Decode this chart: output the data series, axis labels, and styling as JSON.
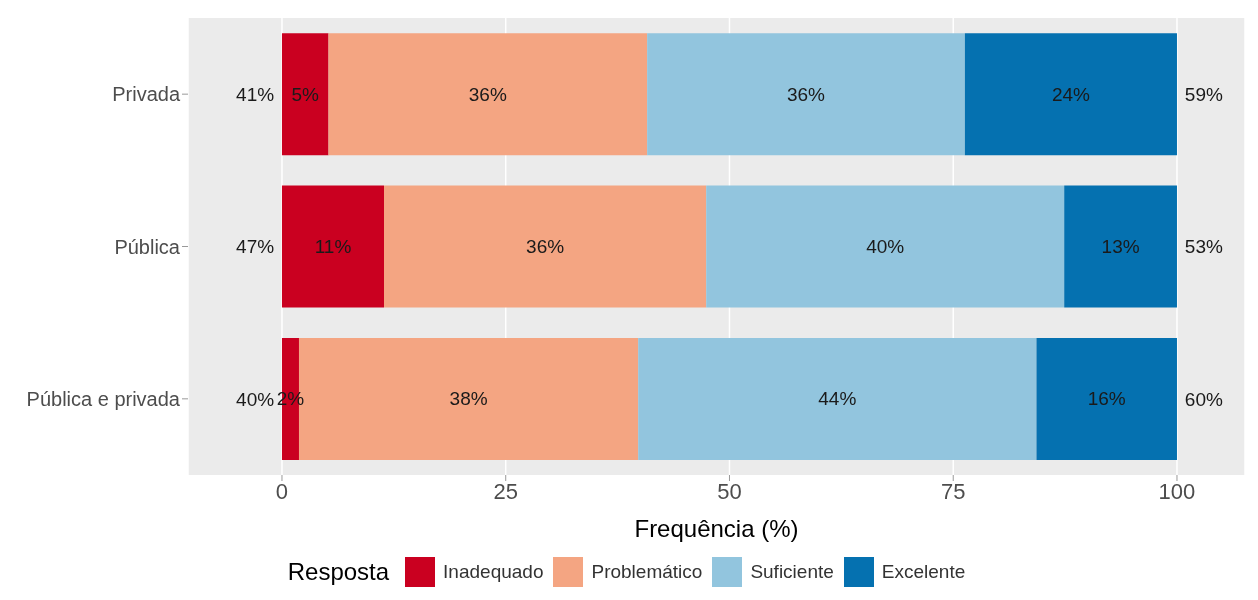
{
  "chart_data": {
    "type": "bar",
    "orientation": "horizontal",
    "stacked": true,
    "xlabel": "Frequência (%)",
    "legend_title": "Resposta",
    "legend": "bottom",
    "grid": "x",
    "categories": [
      "Privada",
      "Pública",
      "Pública e privada"
    ],
    "xlim": [
      -10.5,
      107.6
    ],
    "xticks": [
      0,
      25,
      50,
      75,
      100
    ],
    "series": [
      {
        "name": "Inadequado",
        "color": "#ca0020",
        "values": [
          5.2,
          11.4,
          1.9
        ],
        "value_labels": [
          "5%",
          "11%",
          "2%"
        ]
      },
      {
        "name": "Problemático",
        "color": "#f4a582",
        "values": [
          35.6,
          36.0,
          37.9
        ],
        "value_labels": [
          "36%",
          "36%",
          "38%"
        ]
      },
      {
        "name": "Suficiente",
        "color": "#92c5de",
        "values": [
          35.5,
          40.0,
          44.5
        ],
        "value_labels": [
          "36%",
          "40%",
          "44%"
        ]
      },
      {
        "name": "Excelente",
        "color": "#0571b0",
        "values": [
          23.7,
          12.6,
          15.7
        ],
        "value_labels": [
          "24%",
          "13%",
          "16%"
        ]
      }
    ],
    "annotations": [
      "41%",
      "59%",
      "47%",
      "53%",
      "40%",
      "60%"
    ]
  }
}
